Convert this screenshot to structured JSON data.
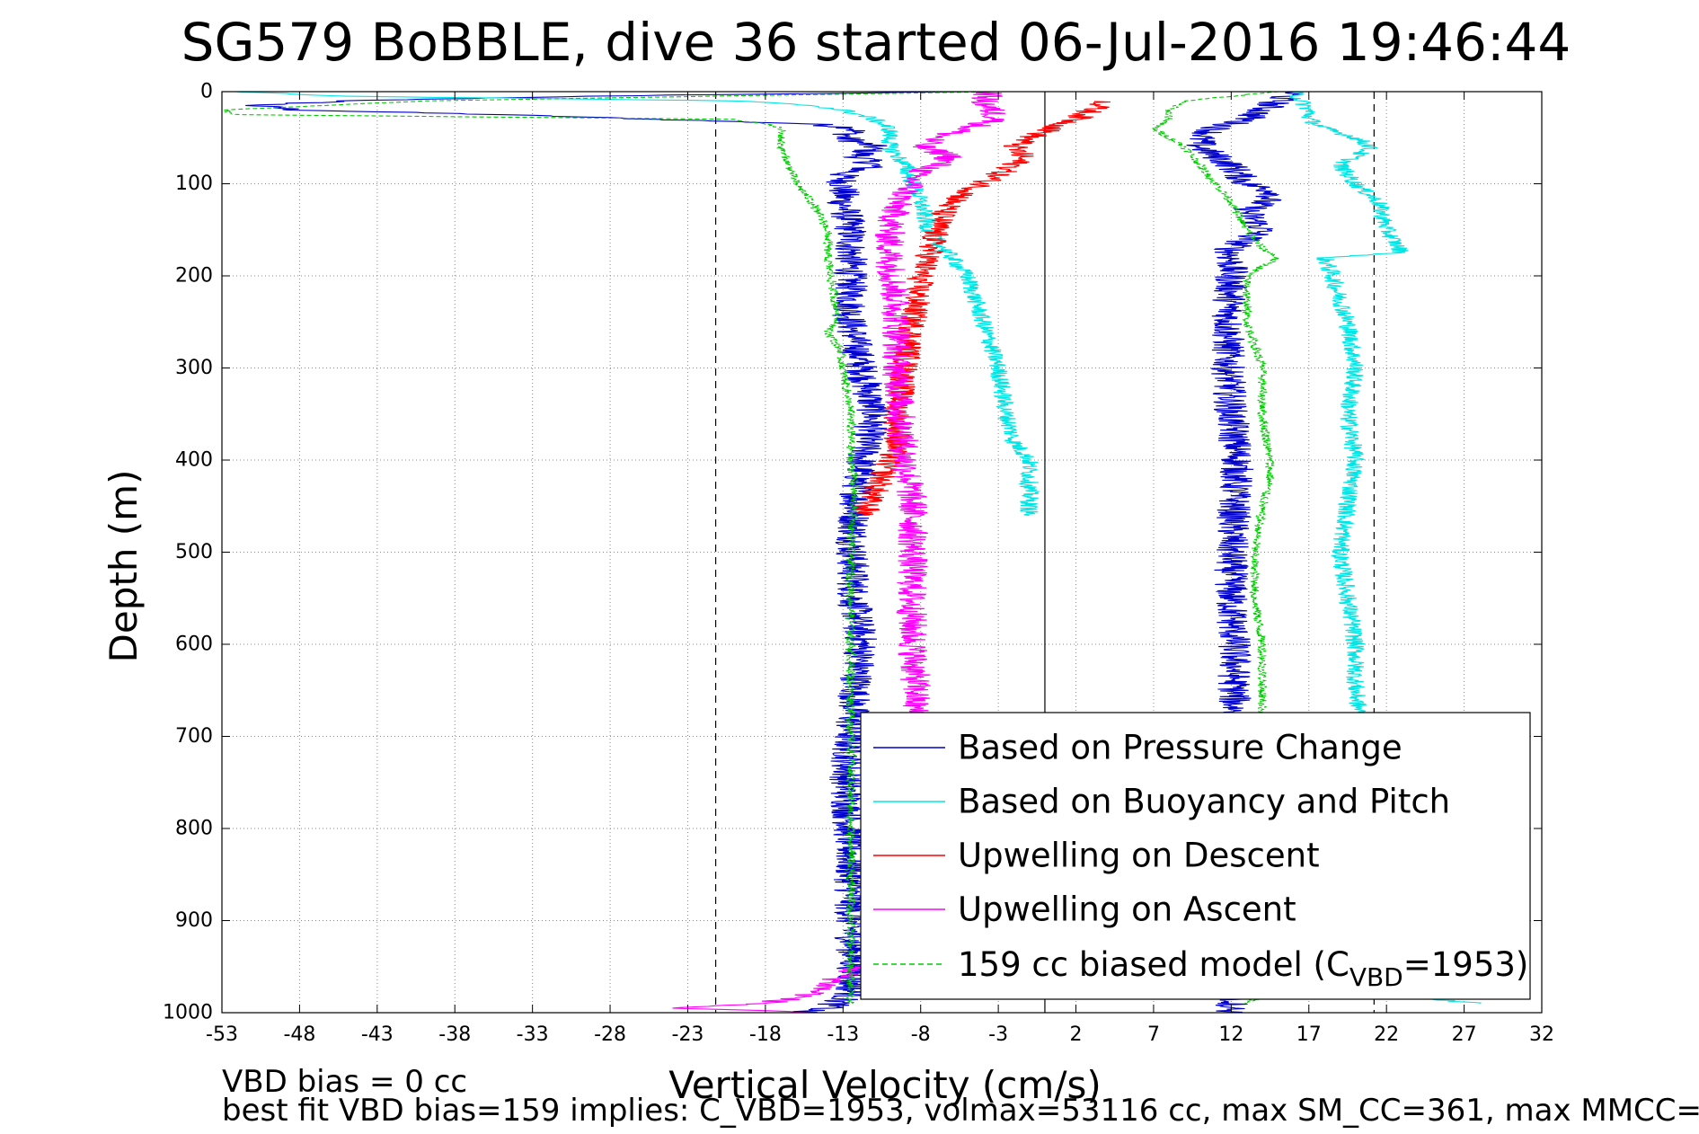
{
  "chart_data": {
    "type": "line",
    "title": "SG579 BoBBLE, dive 36 started 06-Jul-2016 19:46:44",
    "xlabel": "Vertical Velocity (cm/s)",
    "ylabel": "Depth (m)",
    "xlim": [
      -53,
      32
    ],
    "ylim": [
      0,
      1000
    ],
    "y_reversed": true,
    "grid": true,
    "x_ticks": [
      "-53",
      "-48",
      "-43",
      "-38",
      "-33",
      "-28",
      "-23",
      "-18",
      "-13",
      "-8",
      "-3",
      "2",
      "7",
      "12",
      "17",
      "22",
      "27",
      "32"
    ],
    "y_ticks": [
      "0",
      "100",
      "200",
      "300",
      "400",
      "500",
      "600",
      "700",
      "800",
      "900",
      "1000"
    ],
    "reference_lines": [
      {
        "x": -21.2,
        "style": "dashed",
        "color": "#000000"
      },
      {
        "x": 0,
        "style": "solid",
        "color": "#000000"
      },
      {
        "x": 21.2,
        "style": "dashed",
        "color": "#000000"
      }
    ],
    "legend_position": "bottom-right",
    "series": [
      {
        "name": "Based on Pressure Change",
        "color": "#0000cc",
        "style": "solid",
        "noise": 1.1,
        "branches": [
          {
            "depth": [
              0,
              5,
              10,
              15,
              20,
              25,
              30,
              35,
              40,
              50,
              60,
              70,
              80,
              90,
              100,
              120,
              150,
              180,
              200,
              250,
              300,
              350,
              400,
              450,
              500,
              550,
              600,
              650,
              700,
              750,
              800,
              850,
              900,
              950,
              980,
              995,
              1000
            ],
            "velocity": [
              -5,
              -30,
              -45,
              -51,
              -48,
              -35,
              -25,
              -15,
              -12,
              -13,
              -11,
              -12,
              -11,
              -13,
              -13,
              -13,
              -12.5,
              -12.5,
              -12.5,
              -12.5,
              -11.8,
              -11,
              -11.8,
              -12.2,
              -12.4,
              -12.3,
              -11.8,
              -12.2,
              -12.6,
              -12.8,
              -12.6,
              -12.5,
              -12.5,
              -12.3,
              -12.5,
              -14,
              -16
            ]
          },
          {
            "depth": [
              0,
              10,
              20,
              30,
              40,
              50,
              60,
              80,
              100,
              110,
              130,
              150,
              170,
              200,
              250,
              300,
              350,
              400,
              450,
              500,
              550,
              600,
              650,
              700,
              750,
              800,
              850,
              900,
              950,
              980,
              1000
            ],
            "velocity": [
              16,
              15,
              14,
              13,
              11,
              10,
              10,
              12,
              13,
              15,
              13,
              14,
              12,
              12,
              11.8,
              11.8,
              12,
              12.4,
              12.2,
              12,
              12,
              12.2,
              12.2,
              12.2,
              12.2,
              12.2,
              12.2,
              12.2,
              12.2,
              12.2,
              12
            ]
          }
        ]
      },
      {
        "name": "Based on Buoyancy and Pitch",
        "color": "#00e5e5",
        "style": "solid",
        "noise": 0.6,
        "branches": [
          {
            "depth": [
              0,
              5,
              10,
              15,
              20,
              25,
              30,
              40,
              50,
              60,
              80,
              100,
              120,
              150,
              180,
              200,
              250,
              300,
              350,
              380,
              400,
              420,
              440,
              460
            ],
            "velocity": [
              -52,
              -45,
              -20,
              -15,
              -13,
              -12,
              -11,
              -10,
              -10,
              -10,
              -9,
              -8.5,
              -8,
              -7.5,
              -6,
              -5,
              -4,
              -3,
              -2.5,
              -2,
              -1,
              -1,
              -1,
              -1
            ]
          },
          {
            "depth": [
              0,
              10,
              20,
              30,
              40,
              50,
              60,
              70,
              80,
              100,
              120,
              150,
              175,
              180,
              200,
              250,
              300,
              350,
              400,
              450,
              500,
              550,
              600,
              650,
              700,
              750,
              800,
              850,
              900,
              950,
              980,
              990
            ],
            "velocity": [
              16,
              16.5,
              17,
              17,
              18,
              20,
              21,
              20,
              19,
              20,
              21.5,
              22,
              23,
              18,
              18.5,
              19.5,
              20,
              19.5,
              20,
              19.5,
              19,
              19.5,
              20,
              20,
              20.5,
              20.5,
              21,
              21,
              21,
              21.5,
              22,
              28
            ]
          }
        ]
      },
      {
        "name": "Upwelling on Descent",
        "color": "#ff0000",
        "style": "solid",
        "noise": 0.9,
        "branches": [
          {
            "depth": [
              10,
              20,
              30,
              40,
              50,
              60,
              70,
              80,
              90,
              100,
              110,
              120,
              130,
              150,
              180,
              200,
              250,
              300,
              350,
              380,
              400,
              420,
              450,
              460
            ],
            "velocity": [
              4,
              3,
              2,
              0.5,
              -1,
              -2,
              -1.5,
              -2,
              -3,
              -4,
              -5,
              -6,
              -6.5,
              -7,
              -7.5,
              -8,
              -8.5,
              -9,
              -9.5,
              -9.5,
              -10,
              -10.5,
              -11.5,
              -11.5
            ]
          }
        ]
      },
      {
        "name": "Upwelling on Ascent",
        "color": "#ff00ff",
        "style": "solid",
        "noise": 1.0,
        "branches": [
          {
            "depth": [
              0,
              10,
              20,
              30,
              40,
              50,
              60,
              70,
              80,
              90,
              100,
              120,
              150,
              180,
              200,
              250,
              300,
              350,
              400,
              450,
              500,
              550,
              600,
              650,
              700
            ],
            "velocity": [
              -3.5,
              -4,
              -3.5,
              -3,
              -5,
              -7,
              -8,
              -6,
              -7,
              -8.5,
              -8.5,
              -9.5,
              -10,
              -10,
              -9.8,
              -9.5,
              -9.5,
              -9.3,
              -9,
              -8.5,
              -8.5,
              -8.6,
              -8.5,
              -8.3,
              -8.5
            ]
          },
          {
            "depth": [
              950,
              960,
              970,
              980,
              990,
              995,
              1000
            ],
            "velocity": [
              -12,
              -13,
              -14,
              -15,
              -18,
              -24,
              -15
            ]
          }
        ]
      },
      {
        "name": "159 cc biased model (C_VBD=1953)",
        "color": "#00cc00",
        "style": "dashed",
        "noise": 0.3,
        "branches": [
          {
            "depth": [
              0,
              10,
              20,
              25,
              30,
              35,
              40,
              50,
              60,
              80,
              100,
              120,
              150,
              180,
              200,
              250,
              260,
              280,
              300,
              350,
              400,
              420,
              450,
              500,
              550,
              600,
              650,
              700,
              800,
              900,
              950,
              980,
              990
            ],
            "velocity": [
              -3,
              -40,
              -53,
              -52,
              -20,
              -18,
              -17,
              -17,
              -17,
              -16.5,
              -16,
              -15,
              -14,
              -14,
              -13.8,
              -13.3,
              -14,
              -13.2,
              -13,
              -12.5,
              -12.5,
              -12.3,
              -12.3,
              -12.5,
              -12.5,
              -12.5,
              -12.5,
              -12.5,
              -12.5,
              -12.5,
              -12.5,
              -12.5,
              -12.5
            ]
          },
          {
            "depth": [
              0,
              5,
              10,
              15,
              20,
              30,
              40,
              50,
              60,
              80,
              100,
              120,
              150,
              170,
              180,
              200,
              250,
              300,
              350,
              400,
              420,
              450,
              500,
              550,
              600,
              650,
              700,
              800,
              900,
              950,
              980,
              990
            ],
            "velocity": [
              15,
              12,
              9,
              8.5,
              8,
              8,
              7,
              8,
              9,
              10,
              11,
              12,
              13,
              14,
              15,
              13,
              13,
              14,
              14,
              14.5,
              14.5,
              14,
              13.5,
              13.5,
              14,
              14,
              14,
              14,
              14,
              14,
              14,
              13
            ]
          }
        ]
      }
    ]
  },
  "legend": {
    "items": [
      {
        "label": "Based on Pressure Change",
        "color": "#0000cc",
        "dash": ""
      },
      {
        "label": "Based on Buoyancy and Pitch",
        "color": "#00e5e5",
        "dash": ""
      },
      {
        "label": "Upwelling on Descent",
        "color": "#ff0000",
        "dash": ""
      },
      {
        "label": "Upwelling on Ascent",
        "color": "#ff00ff",
        "dash": ""
      }
    ],
    "model_prefix": "159 cc biased model (C",
    "model_sub": "VBD",
    "model_suffix": "=1953)",
    "model_color": "#00cc00"
  },
  "footer": {
    "line1": "VBD bias = 0 cc",
    "line2": "best fit VBD bias=159 implies: C_VBD=1953, volmax=53116 cc, max SM_CC=361, max MMCC=..."
  }
}
